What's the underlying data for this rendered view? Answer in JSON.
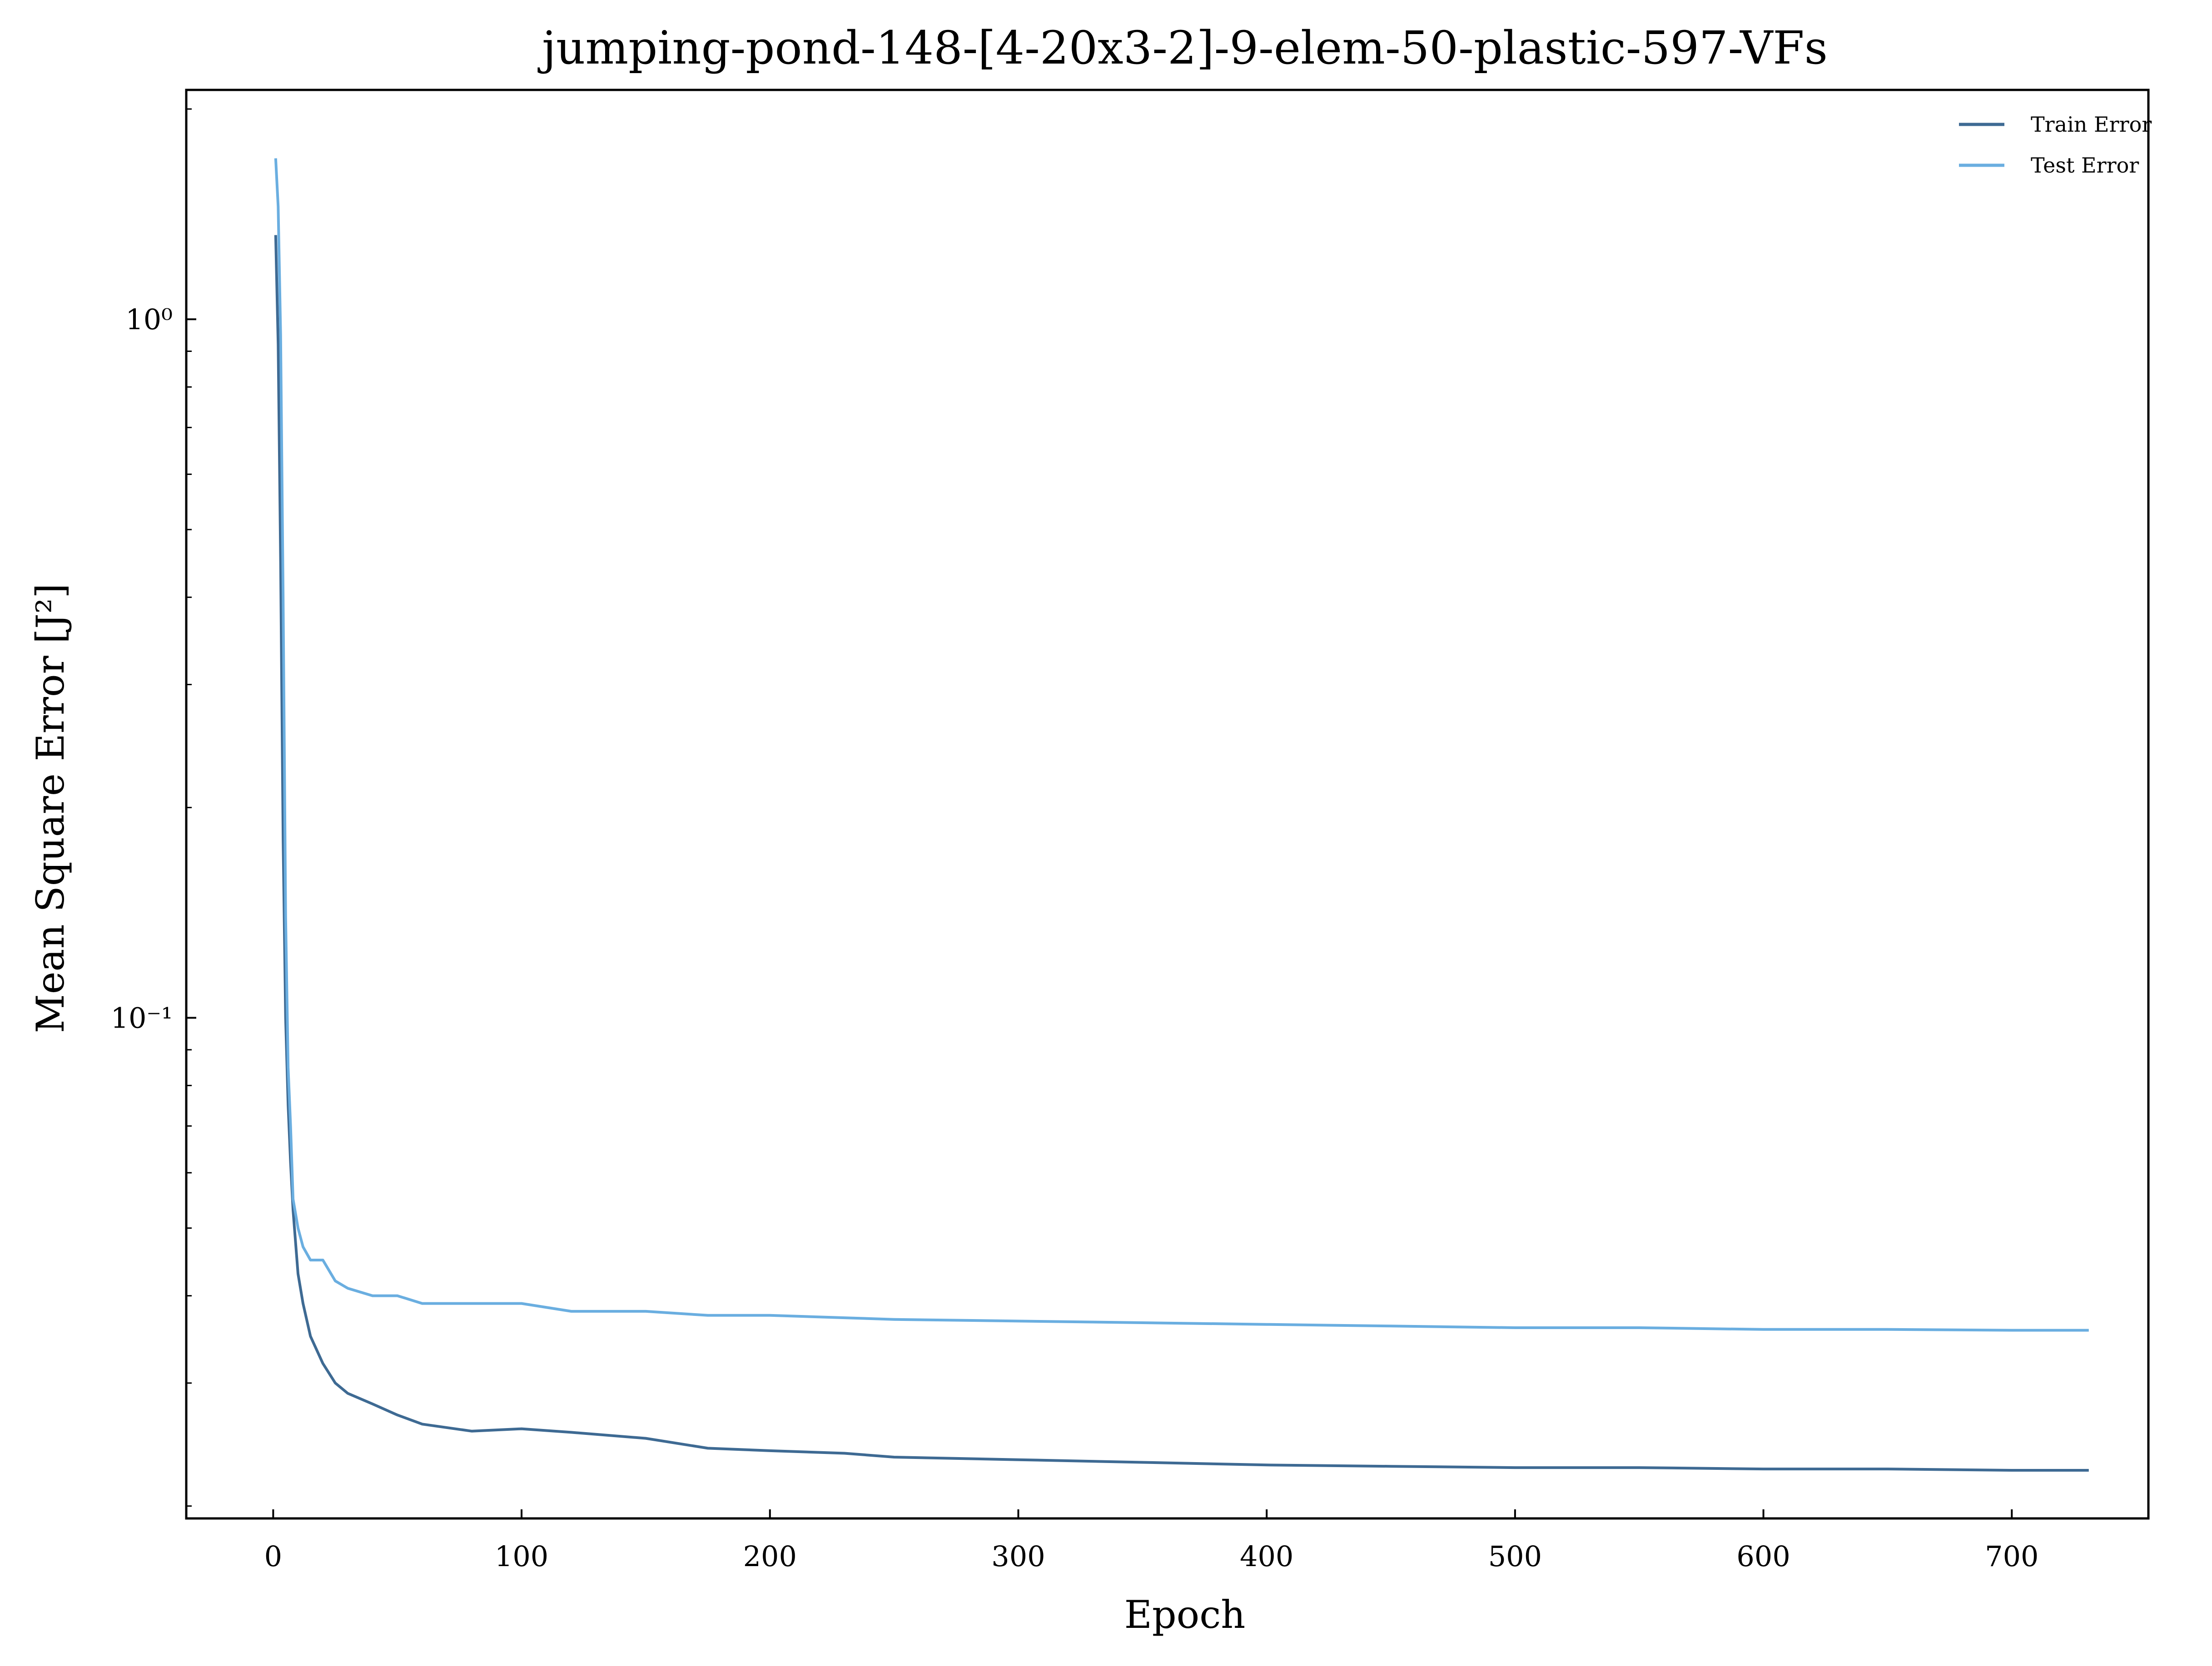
{
  "chart_data": {
    "type": "line",
    "title": "jumping-pond-148-[4-20x3-2]-9-elem-50-plastic-597-VFs",
    "xlabel": "Epoch",
    "ylabel": "Mean Square Error [J²]",
    "xlim": [
      -35,
      755
    ],
    "ylim": [
      0.0192,
      2.13
    ],
    "yscale": "log",
    "grid": false,
    "legend": "top-right",
    "xticks": [
      0,
      100,
      200,
      300,
      400,
      500,
      600,
      700
    ],
    "xtick_labels": [
      "0",
      "100",
      "200",
      "300",
      "400",
      "500",
      "600",
      "700"
    ],
    "yticks": [
      1,
      0.1
    ],
    "ytick_labels": [
      "10⁰",
      "10⁻¹"
    ],
    "x": [
      1,
      2,
      3,
      4,
      5,
      6,
      7,
      8,
      10,
      12,
      15,
      20,
      25,
      30,
      40,
      50,
      60,
      80,
      100,
      120,
      150,
      175,
      200,
      230,
      250,
      300,
      350,
      400,
      450,
      500,
      550,
      600,
      650,
      700,
      731
    ],
    "series": [
      {
        "name": "Train Error",
        "color": "#3e6a93",
        "values": [
          1.32,
          0.92,
          0.45,
          0.18,
          0.1,
          0.075,
          0.062,
          0.053,
          0.043,
          0.039,
          0.035,
          0.032,
          0.03,
          0.029,
          0.028,
          0.027,
          0.0262,
          0.0256,
          0.0258,
          0.0255,
          0.025,
          0.0242,
          0.024,
          0.0238,
          0.0235,
          0.0233,
          0.0231,
          0.0229,
          0.0228,
          0.0227,
          0.0227,
          0.0226,
          0.0226,
          0.0225,
          0.0225
        ]
      },
      {
        "name": "Test Error",
        "color": "#6aaee0",
        "values": [
          1.7,
          1.45,
          0.95,
          0.4,
          0.14,
          0.085,
          0.07,
          0.055,
          0.05,
          0.047,
          0.045,
          0.045,
          0.042,
          0.041,
          0.04,
          0.04,
          0.039,
          0.039,
          0.039,
          0.038,
          0.038,
          0.0375,
          0.0375,
          0.0372,
          0.037,
          0.0368,
          0.0366,
          0.0364,
          0.0362,
          0.036,
          0.036,
          0.0358,
          0.0358,
          0.0357,
          0.0357
        ]
      }
    ]
  }
}
